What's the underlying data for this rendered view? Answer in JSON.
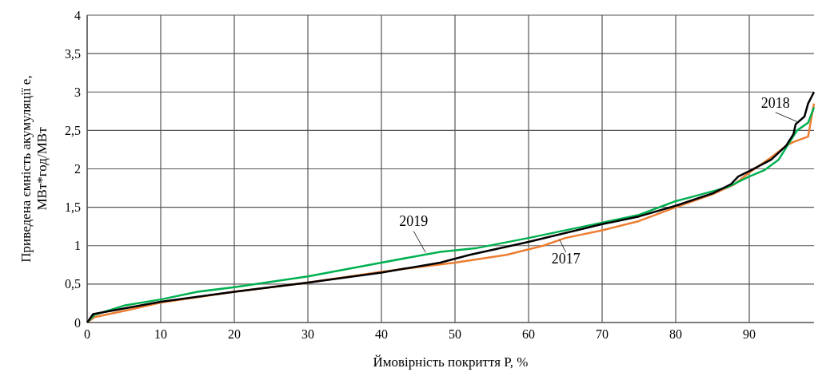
{
  "chart_data": {
    "type": "line",
    "xlabel": "Ймовірність покриття  P, %",
    "ylabel": "Приведена ємність акумуляції e, МВт*год/МВт",
    "xlim": [
      0,
      98.8
    ],
    "ylim": [
      0,
      4
    ],
    "xticks": [
      0,
      10,
      20,
      30,
      40,
      50,
      60,
      70,
      80,
      90
    ],
    "yticks": [
      0,
      {
        "value": 0.5,
        "label": "0,5"
      },
      1,
      {
        "value": 1.5,
        "label": "1,5"
      },
      2,
      {
        "value": 2.5,
        "label": "2,5"
      },
      3,
      {
        "value": 3.5,
        "label": "3,5"
      },
      4
    ],
    "grid": true,
    "line_style": "solid",
    "marker": "none",
    "series": [
      {
        "color": "#ed7d31",
        "x": [
          0,
          1,
          5,
          10,
          20,
          30,
          40,
          50,
          57,
          62,
          65,
          70,
          75,
          80,
          85,
          88,
          90,
          93,
          95,
          96,
          98,
          98.8
        ],
        "values": [
          0,
          0.07,
          0.15,
          0.26,
          0.4,
          0.52,
          0.66,
          0.78,
          0.88,
          1.0,
          1.1,
          1.2,
          1.32,
          1.5,
          1.67,
          1.8,
          1.95,
          2.15,
          2.3,
          2.35,
          2.42,
          2.85
        ]
      },
      {
        "color": "#00b050",
        "x": [
          0,
          1,
          5,
          10,
          15,
          20,
          30,
          40,
          48,
          53,
          60,
          70,
          75,
          80,
          82,
          87,
          90,
          92,
          94,
          95.5,
          96.5,
          98,
          98.8
        ],
        "values": [
          0,
          0.1,
          0.22,
          0.3,
          0.4,
          0.46,
          0.6,
          0.78,
          0.92,
          0.97,
          1.1,
          1.3,
          1.4,
          1.58,
          1.63,
          1.76,
          1.9,
          1.98,
          2.12,
          2.35,
          2.5,
          2.6,
          2.8
        ]
      },
      {
        "color": "#000000",
        "x": [
          0,
          0.8,
          10,
          20,
          30,
          40,
          48,
          52,
          60,
          70,
          75,
          80,
          85,
          87.5,
          88.5,
          90,
          93,
          95,
          96,
          96.3,
          97.5,
          98,
          98.8
        ],
        "values": [
          0,
          0.11,
          0.27,
          0.4,
          0.52,
          0.65,
          0.78,
          0.88,
          1.05,
          1.28,
          1.38,
          1.52,
          1.68,
          1.8,
          1.9,
          1.97,
          2.12,
          2.3,
          2.45,
          2.58,
          2.68,
          2.85,
          3.0
        ]
      }
    ],
    "annotations": [
      {
        "text": "2019",
        "x": 46,
        "y": 0.91
      },
      {
        "text": "2017",
        "x": 64.2,
        "y": 1.08
      },
      {
        "text": "2018",
        "x": 96.6,
        "y": 2.61
      }
    ]
  }
}
